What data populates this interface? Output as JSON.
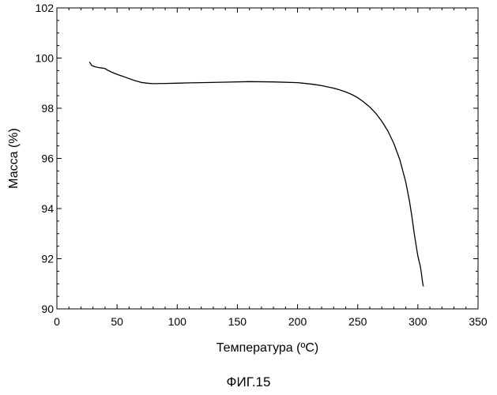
{
  "chart_data": {
    "type": "line",
    "title": "",
    "xlabel": "Температура (ºC)",
    "ylabel": "Масса (%)",
    "xlim": [
      0,
      350
    ],
    "ylim": [
      90,
      102
    ],
    "xticks": [
      "0",
      "50",
      "100",
      "150",
      "200",
      "250",
      "300",
      "350"
    ],
    "yticks": [
      "90",
      "92",
      "94",
      "96",
      "98",
      "100",
      "102"
    ],
    "grid": false,
    "legend": "none",
    "series": [
      {
        "color": "#000000",
        "x": [
          27,
          29,
          32,
          35,
          38,
          40,
          42,
          45,
          50,
          55,
          60,
          65,
          70,
          75,
          80,
          90,
          100,
          110,
          120,
          140,
          160,
          180,
          200,
          210,
          215,
          220,
          225,
          230,
          235,
          240,
          245,
          250,
          255,
          260,
          265,
          270,
          275,
          280,
          285,
          290,
          293,
          295,
          297,
          299,
          300,
          301,
          302,
          302.5,
          303,
          303.5,
          304,
          304.3,
          304.5,
          304.7
        ],
        "y": [
          99.85,
          99.7,
          99.65,
          99.62,
          99.6,
          99.58,
          99.52,
          99.45,
          99.35,
          99.27,
          99.18,
          99.1,
          99.03,
          99.0,
          98.98,
          98.99,
          99.0,
          99.01,
          99.02,
          99.04,
          99.06,
          99.05,
          99.02,
          98.97,
          98.94,
          98.9,
          98.85,
          98.8,
          98.73,
          98.65,
          98.55,
          98.42,
          98.25,
          98.05,
          97.8,
          97.48,
          97.1,
          96.6,
          95.95,
          95.05,
          94.3,
          93.7,
          93.0,
          92.4,
          92.1,
          91.9,
          91.7,
          91.55,
          91.4,
          91.2,
          91.05,
          90.95,
          90.92,
          90.9
        ]
      }
    ]
  },
  "caption": "ФИГ.15"
}
